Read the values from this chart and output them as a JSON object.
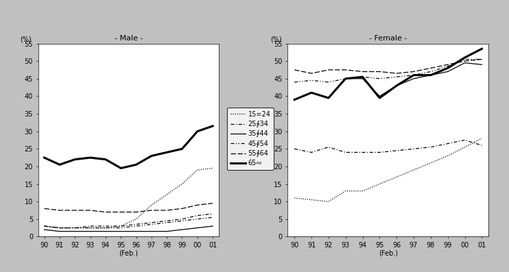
{
  "years_labels": [
    "90",
    "91",
    "92",
    "93",
    "94",
    "95",
    "96",
    "97",
    "98",
    "99",
    "00",
    "01"
  ],
  "male": {
    "15_24": [
      3.0,
      2.5,
      2.5,
      2.5,
      2.5,
      3.0,
      5.0,
      9.0,
      12.0,
      15.0,
      19.0,
      19.5
    ],
    "25_34": [
      3.0,
      2.5,
      2.5,
      3.0,
      3.0,
      3.0,
      3.5,
      4.0,
      4.5,
      5.0,
      6.0,
      6.5
    ],
    "35_44": [
      2.0,
      1.5,
      1.5,
      1.5,
      1.5,
      1.5,
      1.5,
      1.5,
      1.5,
      2.0,
      2.5,
      3.0
    ],
    "45_54": [
      3.0,
      2.5,
      2.5,
      2.5,
      2.5,
      2.5,
      3.0,
      3.5,
      4.0,
      4.5,
      5.0,
      5.5
    ],
    "55_64": [
      8.0,
      7.5,
      7.5,
      7.5,
      7.0,
      7.0,
      7.0,
      7.5,
      7.5,
      8.0,
      9.0,
      9.5
    ],
    "65plus": [
      22.5,
      20.5,
      22.0,
      22.5,
      22.0,
      19.5,
      20.5,
      23.0,
      24.0,
      25.0,
      30.0,
      31.5
    ]
  },
  "female": {
    "15_24": [
      11.0,
      10.5,
      10.0,
      13.0,
      13.0,
      15.0,
      17.0,
      19.0,
      21.0,
      23.0,
      25.5,
      28.0
    ],
    "25_34": [
      25.0,
      24.0,
      25.5,
      24.0,
      24.0,
      24.0,
      24.5,
      25.0,
      25.5,
      26.5,
      27.5,
      26.0
    ],
    "35_44": [
      39.0,
      41.0,
      39.5,
      45.0,
      45.0,
      40.0,
      43.0,
      45.0,
      46.0,
      47.0,
      49.5,
      49.0
    ],
    "45_54": [
      44.0,
      44.5,
      44.0,
      45.0,
      45.5,
      45.0,
      45.5,
      46.0,
      47.0,
      48.5,
      50.5,
      50.5
    ],
    "55_64": [
      47.5,
      46.5,
      47.5,
      47.5,
      47.0,
      47.0,
      46.5,
      47.0,
      48.0,
      49.0,
      50.0,
      50.5
    ],
    "65plus": [
      39.0,
      41.0,
      39.5,
      45.0,
      45.5,
      39.5,
      43.0,
      46.0,
      46.0,
      48.0,
      51.0,
      53.5
    ]
  },
  "title_male": "- Male -",
  "title_female": "- Female -",
  "xlabel": "(Feb.)",
  "ylabel": "(%)",
  "ylim": [
    0,
    55
  ],
  "yticks": [
    0,
    5,
    10,
    15,
    20,
    25,
    30,
    35,
    40,
    45,
    50,
    55
  ],
  "legend_labels": [
    "15≂24",
    "25∲34",
    "35∲44",
    "45∲54",
    "55∲64",
    "65∾"
  ],
  "bg_color": "#c0c0c0",
  "panel_color": "#ffffff"
}
